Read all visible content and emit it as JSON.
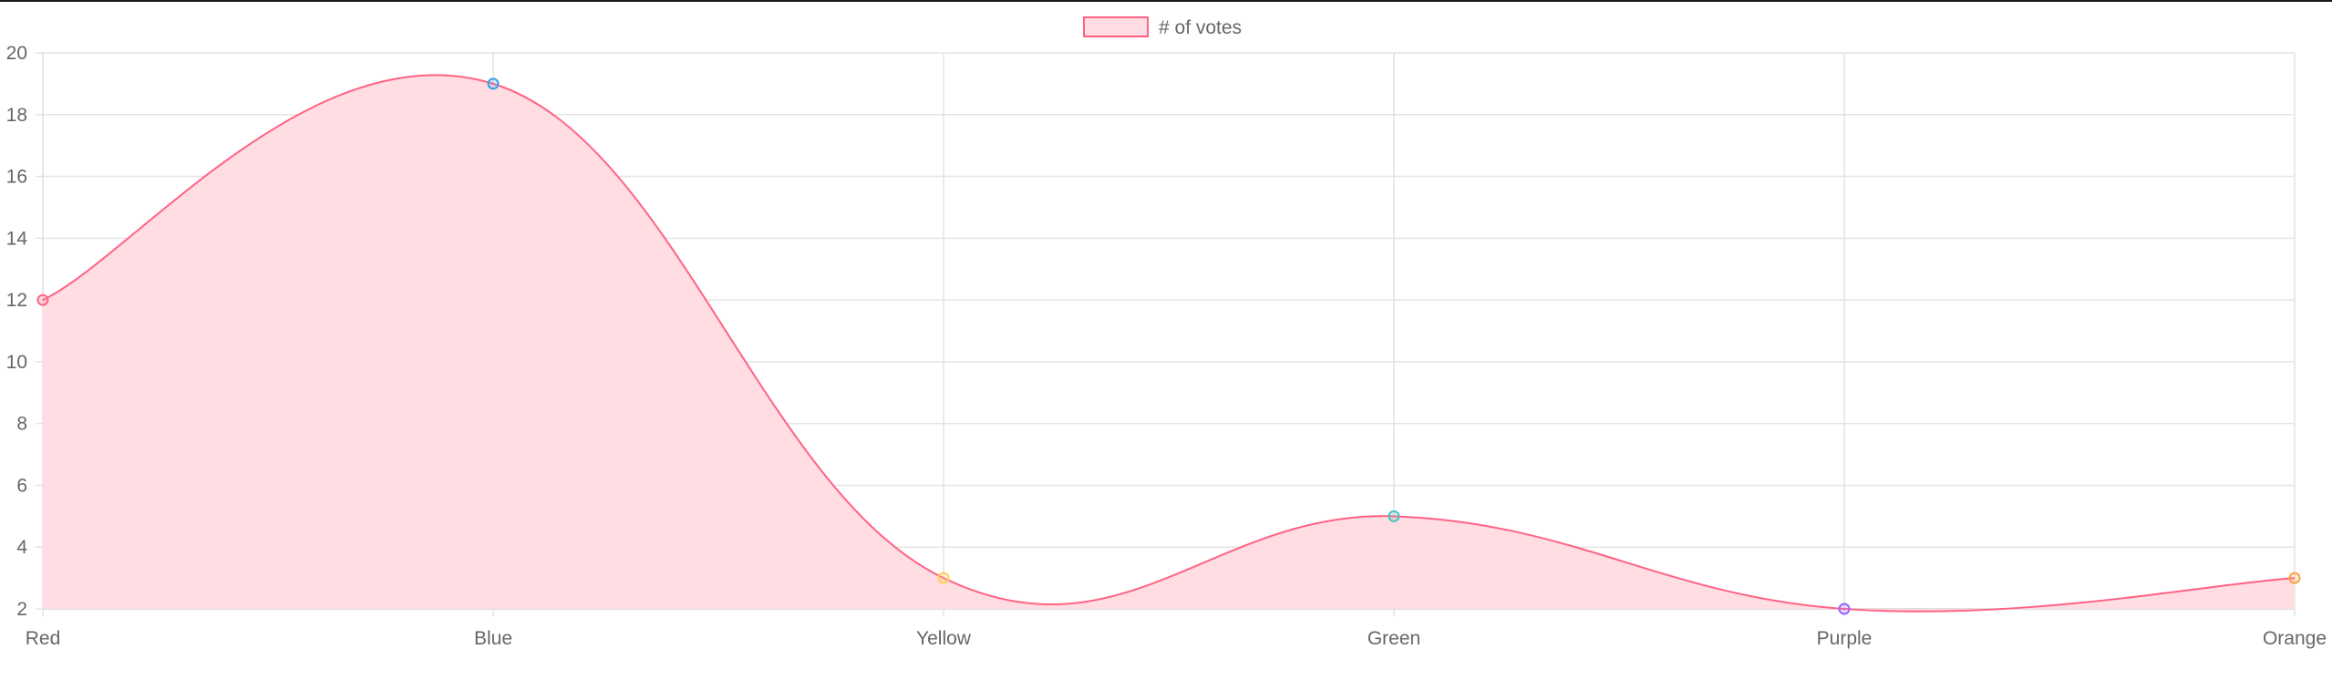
{
  "chart_data": {
    "type": "area",
    "categories": [
      "Red",
      "Blue",
      "Yellow",
      "Green",
      "Purple",
      "Orange"
    ],
    "series": [
      {
        "name": "# of votes",
        "values": [
          12,
          19,
          3,
          5,
          2,
          3
        ],
        "line_color": "#ff6384",
        "fill_color": "#ffdde3",
        "point_colors": [
          "#ff6384",
          "#36a2eb",
          "#ffce56",
          "#4bc0c0",
          "#9966ff",
          "#ff9f40"
        ]
      }
    ],
    "title": "",
    "xlabel": "",
    "ylabel": "",
    "ylim": [
      2,
      20
    ],
    "yticks": [
      2,
      4,
      6,
      8,
      10,
      12,
      14,
      16,
      18,
      20
    ],
    "grid": true,
    "legend_position": "top-center",
    "smooth": true
  }
}
